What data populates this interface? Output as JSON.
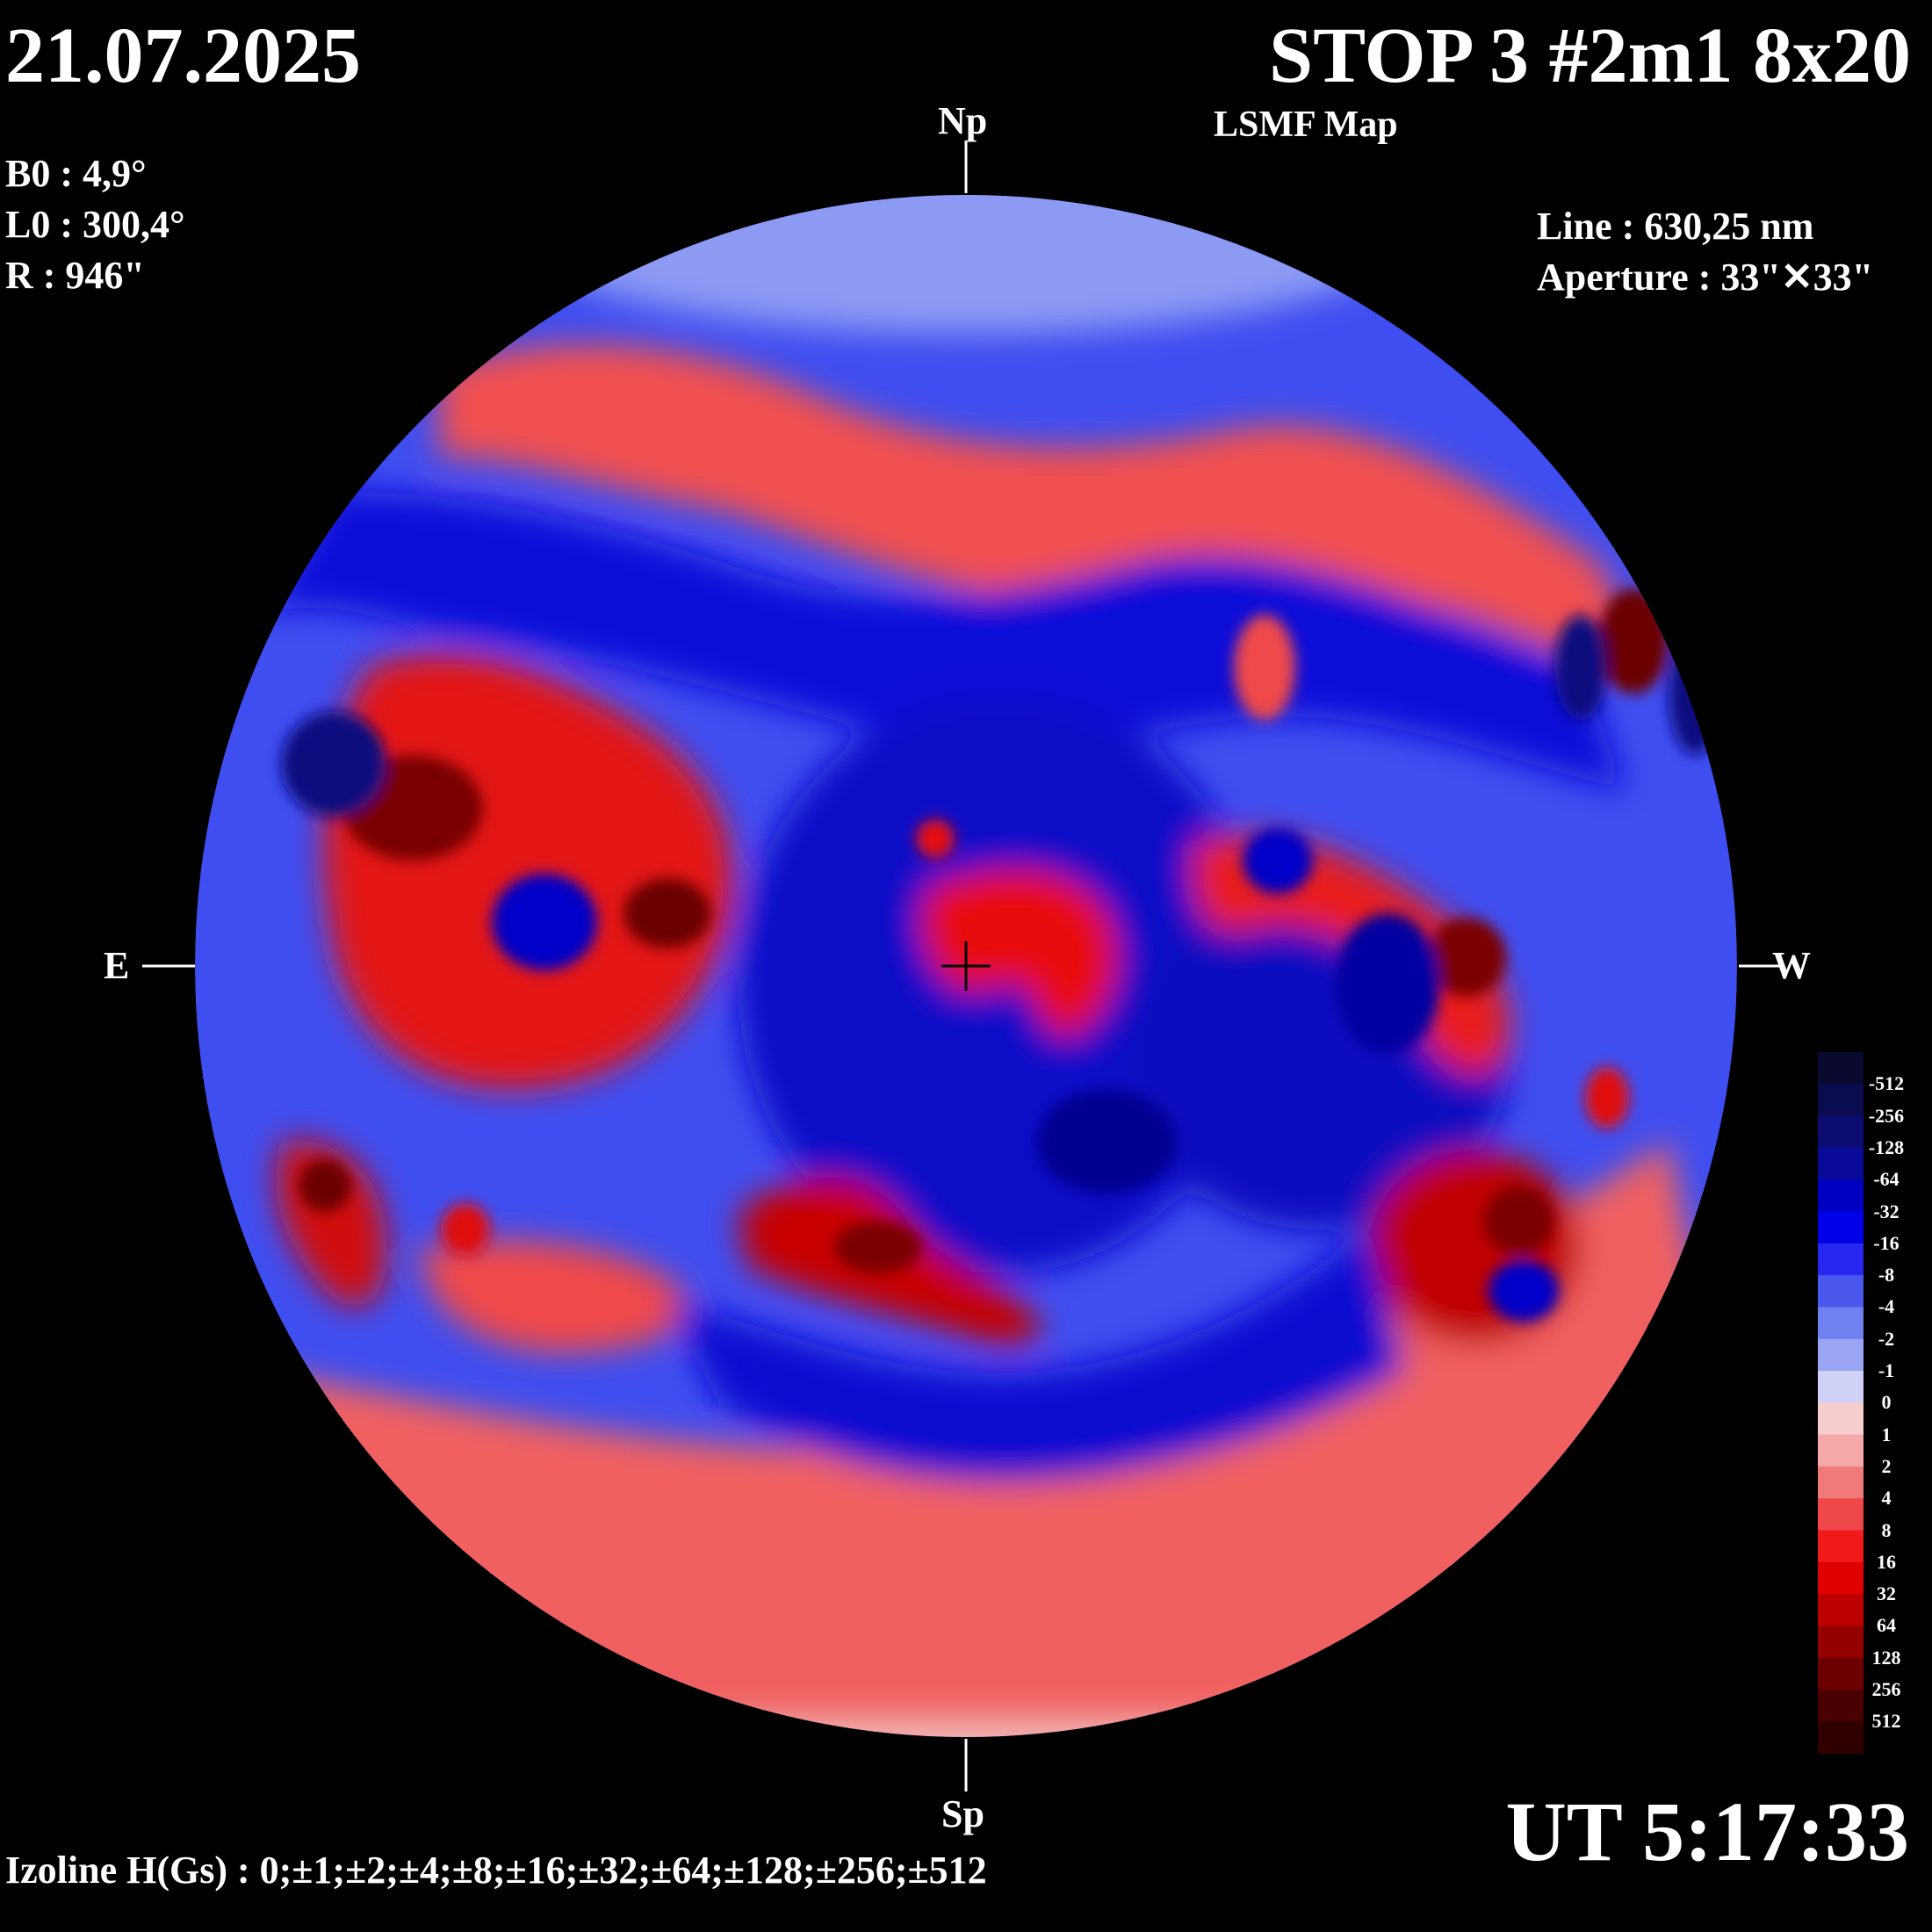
{
  "header": {
    "date": "21.07.2025",
    "title": "STOP 3 #2m1 8x20",
    "subtitle": "LSMF  Map"
  },
  "params": {
    "b0": "B0 : 4,9°",
    "l0": "L0 : 300,4°",
    "r": "R  : 946\""
  },
  "instrument": {
    "line": "Line :  630,25 nm",
    "aperture": "Aperture : 33\"✕33\""
  },
  "directions": {
    "north": "Np",
    "south": "Sp",
    "east": "E",
    "west": "W"
  },
  "time": "UT 5:17:33",
  "footer": "Izoline H(Gs) : 0;±1;±2;±4;±8;±16;±32;±64;±128;±256;±512",
  "legend": {
    "levels": [
      "-512",
      "-256",
      "-128",
      "-64",
      "-32",
      "-16",
      "-8",
      "-4",
      "-2",
      "-1",
      "0",
      "1",
      "2",
      "4",
      "8",
      "16",
      "32",
      "64",
      "128",
      "256",
      "512"
    ],
    "colors": [
      "#0a0a30",
      "#0b0b50",
      "#0c0c70",
      "#0a0a98",
      "#0000c0",
      "#0000e8",
      "#2828f0",
      "#4a58ee",
      "#6f80f0",
      "#9aa6f4",
      "#cfd2f6",
      "#f6cece",
      "#f4a8a8",
      "#f07a7a",
      "#f04848",
      "#f01a1a",
      "#e00000",
      "#bc0000",
      "#940000",
      "#6c0000",
      "#4a0000",
      "#300000"
    ]
  },
  "colors": {
    "negative_polarity": "#0000e0",
    "positive_polarity": "#e00000",
    "background": "#000000"
  }
}
